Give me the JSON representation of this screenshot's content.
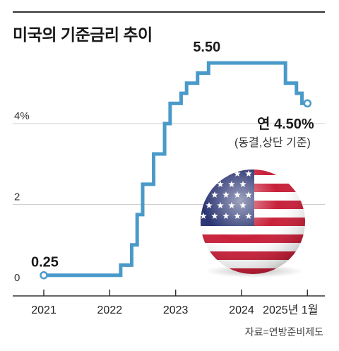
{
  "title": "미국의 기준금리 추이",
  "source": "자료=연방준비제도",
  "chart_data": {
    "type": "line",
    "step": true,
    "x_ticks": [
      "2021",
      "2022",
      "2023",
      "2024",
      "2025년 1월"
    ],
    "y_ticks": [
      "0",
      "2",
      "4%"
    ],
    "ylim": [
      0,
      6
    ],
    "grid": true,
    "series": [
      {
        "color": "#4a9ac9",
        "points": [
          [
            "2021-01",
            0.25
          ],
          [
            "2022-03",
            0.5
          ],
          [
            "2022-05",
            1.0
          ],
          [
            "2022-06",
            1.75
          ],
          [
            "2022-07",
            2.5
          ],
          [
            "2022-09",
            3.25
          ],
          [
            "2022-11",
            4.0
          ],
          [
            "2022-12",
            4.5
          ],
          [
            "2023-02",
            4.75
          ],
          [
            "2023-03",
            5.0
          ],
          [
            "2023-05",
            5.25
          ],
          [
            "2023-07",
            5.5
          ],
          [
            "2024-09",
            5.0
          ],
          [
            "2024-11",
            4.75
          ],
          [
            "2024-12",
            4.5
          ],
          [
            "2025-01",
            4.5
          ]
        ]
      }
    ],
    "annotations": {
      "start": "0.25",
      "peak": "5.50",
      "end_line1": "연 4.50%",
      "end_line2": "(동결,상단 기준)"
    }
  }
}
